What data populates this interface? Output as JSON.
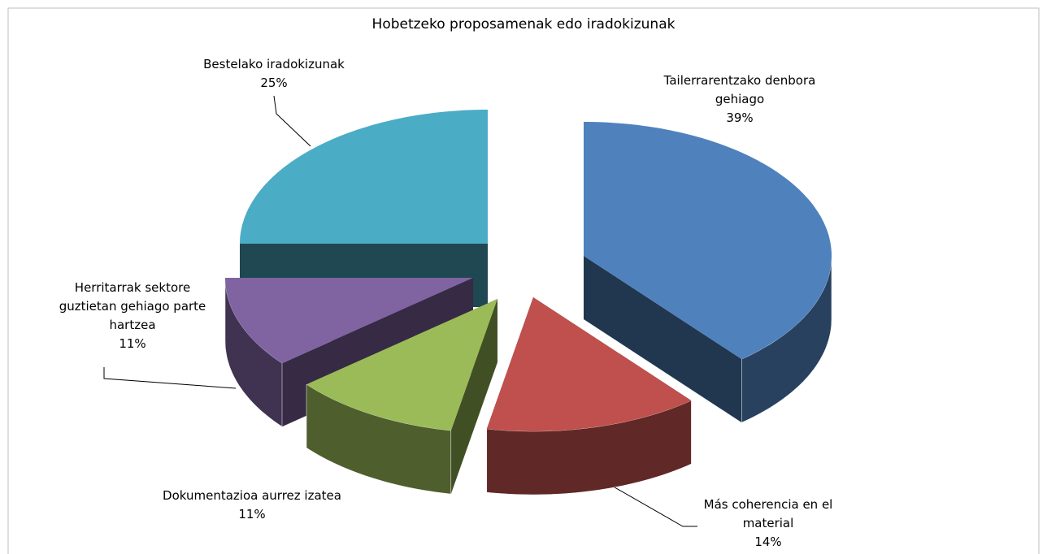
{
  "chart_data": {
    "type": "pie3d",
    "title": "Hobetzeko proposamenak edo iradokizunak",
    "categories": [
      "Tailerrarentzako denbora gehiago",
      "Más coherencia en el material",
      "Dokumentazioa aurrez izatea",
      "Herritarrak sektore guztietan gehiago parte hartzea",
      "Bestelako iradokizunak"
    ],
    "values": [
      39,
      14,
      11,
      11,
      25
    ],
    "value_labels": [
      "39%",
      "14%",
      "11%",
      "11%",
      "25%"
    ],
    "colors": [
      "#4f81bd",
      "#c0504d",
      "#9bbb59",
      "#8064a2",
      "#4bacc6"
    ]
  }
}
